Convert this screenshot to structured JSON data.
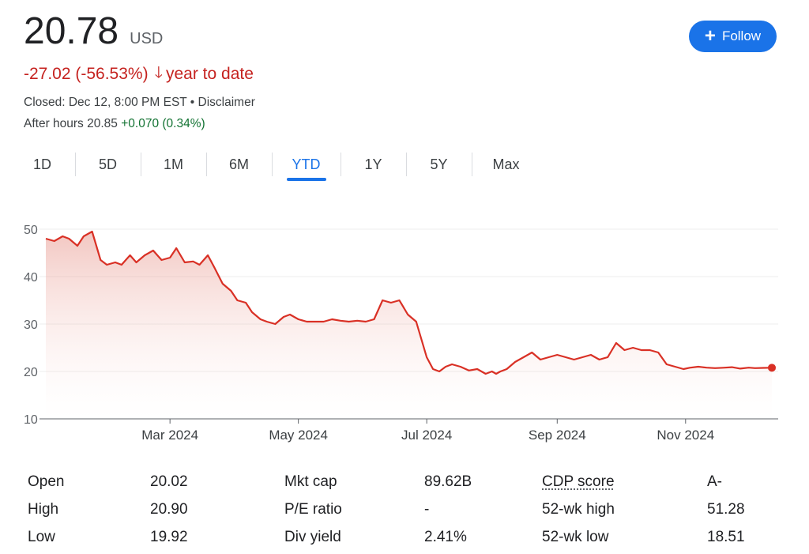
{
  "quote": {
    "price": "20.78",
    "currency": "USD",
    "change": "-27.02 (-56.53%)",
    "change_arrow": "🡓",
    "change_period": "year to date",
    "closed": "Closed: Dec 12, 8:00 PM EST • Disclaimer",
    "after_hours_label": "After hours 20.85",
    "after_hours_change": "+0.070 (0.34%)"
  },
  "follow": {
    "icon": "plus-icon",
    "label": "Follow"
  },
  "tabs": [
    {
      "label": "1D"
    },
    {
      "label": "5D"
    },
    {
      "label": "1M"
    },
    {
      "label": "6M"
    },
    {
      "label": "YTD",
      "active": true
    },
    {
      "label": "1Y"
    },
    {
      "label": "5Y"
    },
    {
      "label": "Max"
    }
  ],
  "colors": {
    "line": "#d93025",
    "negative": "#c5221f",
    "positive": "#137333",
    "accent": "#1a73e8"
  },
  "chart_data": {
    "type": "area",
    "title": "",
    "xlabel": "",
    "ylabel": "",
    "ylim": [
      10,
      50
    ],
    "yticks": [
      50,
      40,
      30,
      20,
      10
    ],
    "xlim": [
      "2024-01-02",
      "2024-12-12"
    ],
    "xticks": [
      {
        "date": "2024-03-01",
        "label": "Mar 2024"
      },
      {
        "date": "2024-05-01",
        "label": "May 2024"
      },
      {
        "date": "2024-07-01",
        "label": "Jul 2024"
      },
      {
        "date": "2024-09-01",
        "label": "Sep 2024"
      },
      {
        "date": "2024-11-01",
        "label": "Nov 2024"
      }
    ],
    "grid": true,
    "series": [
      {
        "x": [
          "2024-01-02",
          "2024-01-06",
          "2024-01-10",
          "2024-01-13",
          "2024-01-17",
          "2024-01-20",
          "2024-01-24",
          "2024-01-28",
          "2024-01-31",
          "2024-02-04",
          "2024-02-07",
          "2024-02-09",
          "2024-02-11",
          "2024-02-14",
          "2024-02-18",
          "2024-02-22",
          "2024-02-26",
          "2024-03-01",
          "2024-03-04",
          "2024-03-08",
          "2024-03-12",
          "2024-03-15",
          "2024-03-19",
          "2024-03-22",
          "2024-03-26",
          "2024-03-30",
          "2024-04-02",
          "2024-04-06",
          "2024-04-09",
          "2024-04-13",
          "2024-04-16",
          "2024-04-20",
          "2024-04-24",
          "2024-04-27",
          "2024-05-01",
          "2024-05-05",
          "2024-05-09",
          "2024-05-13",
          "2024-05-17",
          "2024-05-21",
          "2024-05-25",
          "2024-05-29",
          "2024-06-02",
          "2024-06-06",
          "2024-06-10",
          "2024-06-14",
          "2024-06-18",
          "2024-06-22",
          "2024-06-26",
          "2024-07-01",
          "2024-07-04",
          "2024-07-07",
          "2024-07-10",
          "2024-07-13",
          "2024-07-17",
          "2024-07-21",
          "2024-07-25",
          "2024-07-29",
          "2024-08-01",
          "2024-08-03",
          "2024-08-05",
          "2024-08-08",
          "2024-08-12",
          "2024-08-16",
          "2024-08-20",
          "2024-08-24",
          "2024-08-28",
          "2024-09-01",
          "2024-09-05",
          "2024-09-09",
          "2024-09-13",
          "2024-09-17",
          "2024-09-21",
          "2024-09-25",
          "2024-09-29",
          "2024-10-03",
          "2024-10-07",
          "2024-10-11",
          "2024-10-15",
          "2024-10-19",
          "2024-10-23",
          "2024-10-27",
          "2024-10-31",
          "2024-11-03",
          "2024-11-07",
          "2024-11-11",
          "2024-11-15",
          "2024-11-19",
          "2024-11-23",
          "2024-11-27",
          "2024-12-01",
          "2024-12-04",
          "2024-12-08",
          "2024-12-12"
        ],
        "y": [
          48.0,
          47.5,
          48.5,
          48.0,
          46.5,
          48.5,
          49.5,
          43.5,
          42.5,
          43.0,
          42.5,
          43.5,
          44.5,
          43.0,
          44.5,
          45.5,
          43.5,
          44.0,
          46.0,
          43.0,
          43.2,
          42.5,
          44.5,
          42.0,
          38.5,
          37.0,
          35.0,
          34.5,
          32.5,
          31.0,
          30.5,
          30.0,
          31.5,
          32.0,
          31.0,
          30.5,
          30.5,
          30.5,
          31.0,
          30.7,
          30.5,
          30.7,
          30.5,
          31.0,
          35.0,
          34.5,
          35.0,
          32.0,
          30.5,
          23.0,
          20.5,
          20.0,
          21.0,
          21.5,
          21.0,
          20.2,
          20.5,
          19.5,
          20.0,
          19.5,
          20.0,
          20.5,
          22.0,
          23.0,
          24.0,
          22.5,
          23.0,
          23.5,
          23.0,
          22.5,
          23.0,
          23.5,
          22.5,
          23.0,
          26.0,
          24.5,
          25.0,
          24.5,
          24.5,
          24.0,
          21.5,
          21.0,
          20.5,
          20.78,
          21.0,
          20.8,
          20.7,
          20.78,
          20.9,
          20.6,
          20.8,
          20.7,
          20.75,
          20.78
        ]
      }
    ]
  },
  "stats": {
    "col1": [
      {
        "label": "Open",
        "value": "20.02"
      },
      {
        "label": "High",
        "value": "20.90"
      },
      {
        "label": "Low",
        "value": "19.92"
      }
    ],
    "col2": [
      {
        "label": "Mkt cap",
        "value": "89.62B"
      },
      {
        "label": "P/E ratio",
        "value": "-"
      },
      {
        "label": "Div yield",
        "value": "2.41%"
      }
    ],
    "col3": [
      {
        "label": "CDP score",
        "value": "A-"
      },
      {
        "label": "52-wk high",
        "value": "51.28"
      },
      {
        "label": "52-wk low",
        "value": "18.51"
      }
    ]
  }
}
